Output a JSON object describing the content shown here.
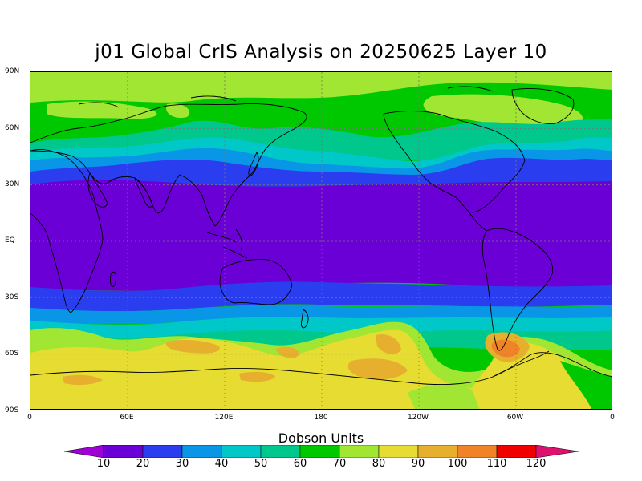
{
  "title": "j01 Global CrIS Analysis on 20250625 Layer 10",
  "lat_labels": [
    "90N",
    "60N",
    "30N",
    "EQ",
    "30S",
    "60S",
    "90S"
  ],
  "lon_labels": [
    "0",
    "60E",
    "120E",
    "180",
    "120W",
    "60W",
    "0"
  ],
  "colorbar": {
    "title": "Dobson Units",
    "labels": [
      "10",
      "20",
      "30",
      "40",
      "50",
      "60",
      "70",
      "80",
      "90",
      "100",
      "110",
      "120"
    ],
    "colors": [
      "#9e00d6",
      "#6b00d6",
      "#2a3ef0",
      "#0a96e6",
      "#00c8c8",
      "#00c88c",
      "#00c800",
      "#a0e632",
      "#e6dc32",
      "#e6af2d",
      "#f08228",
      "#f00000",
      "#e0106e"
    ]
  },
  "legend_colors": {
    "purple": "#6b00d6",
    "blue": "#2a3ef0",
    "sky": "#0a96e6",
    "cyan": "#00c8c8",
    "teal": "#00c88c",
    "green": "#00c800",
    "lime": "#a0e632",
    "yellow": "#e6dc32",
    "gold": "#e6af2d",
    "orange": "#f08228"
  }
}
